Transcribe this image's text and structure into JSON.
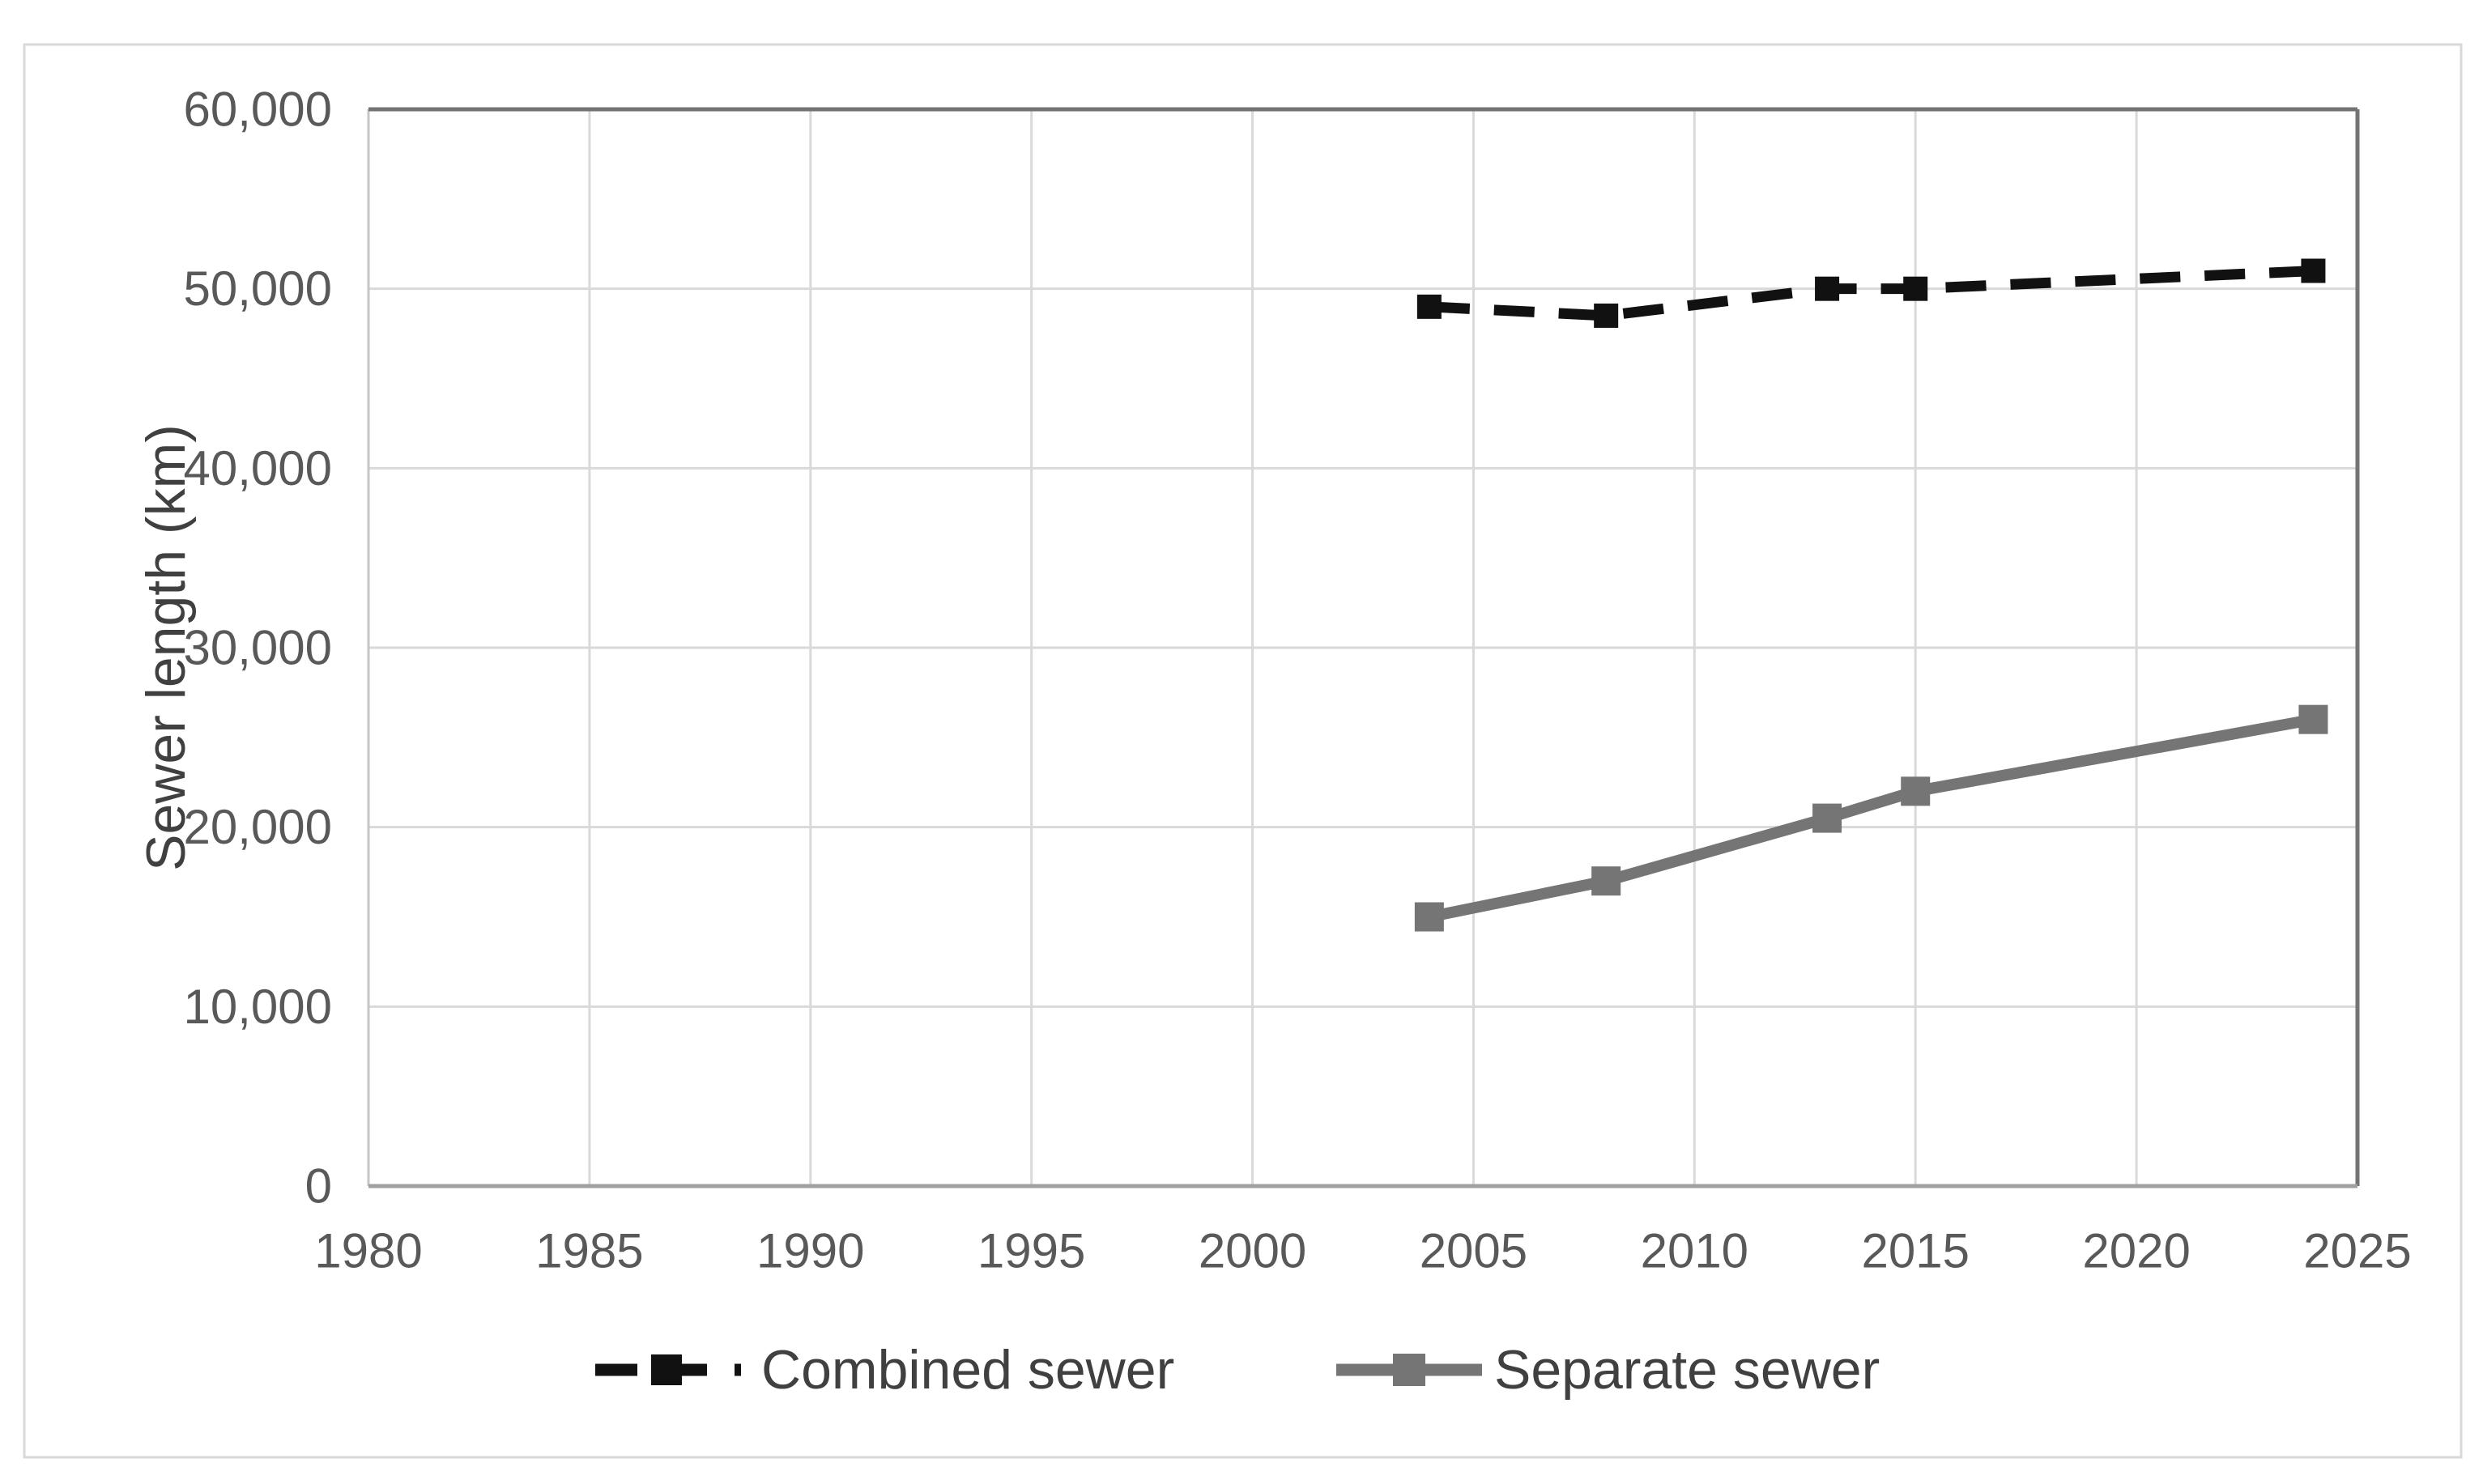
{
  "figure": {
    "background": "#ffffff",
    "outer_border_color": "#d9d9d9"
  },
  "chart_data": {
    "type": "line",
    "title": "",
    "xlabel": "",
    "ylabel": "Sewer length (km)",
    "xlim": [
      1980,
      2025
    ],
    "ylim": [
      0,
      60000
    ],
    "grid": true,
    "legend_position": "bottom",
    "x_tick_values": [
      1980,
      1985,
      1990,
      1995,
      2000,
      2005,
      2010,
      2015,
      2020,
      2025
    ],
    "x_tick_labels": [
      "1980",
      "1985",
      "1990",
      "1995",
      "2000",
      "2005",
      "2010",
      "2015",
      "2020",
      "2025"
    ],
    "y_tick_values": [
      0,
      10000,
      20000,
      30000,
      40000,
      50000,
      60000
    ],
    "y_tick_labels": [
      "0",
      "10,000",
      "20,000",
      "30,000",
      "40,000",
      "50,000",
      "60,000"
    ],
    "series": [
      {
        "name": "Combined sewer",
        "color": "#111111",
        "line_style": "dashed",
        "marker": "square",
        "x": [
          2004,
          2008,
          2013,
          2015,
          2024
        ],
        "values": [
          49000,
          48500,
          50000,
          50000,
          51000
        ]
      },
      {
        "name": "Separate sewer",
        "color": "#757575",
        "line_style": "solid",
        "marker": "square",
        "x": [
          2004,
          2008,
          2013,
          2015,
          2024
        ],
        "values": [
          15000,
          17000,
          20500,
          22000,
          26000
        ]
      }
    ],
    "colors": {
      "gridline": "#d9d9d9",
      "plot_border_dark": "#737373",
      "axis_line": "#a0a0a0",
      "plot_border_left": "#c6c6c6",
      "tick_text": "#595959",
      "label_text": "#404040"
    }
  }
}
